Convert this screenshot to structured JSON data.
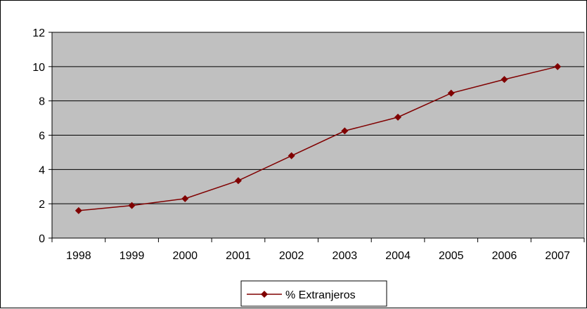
{
  "chart_data": {
    "type": "line",
    "title": "",
    "xlabel": "",
    "ylabel": "",
    "categories": [
      "1998",
      "1999",
      "2000",
      "2001",
      "2002",
      "2003",
      "2004",
      "2005",
      "2006",
      "2007"
    ],
    "series": [
      {
        "name": "% Extranjeros",
        "values": [
          1.6,
          1.9,
          2.3,
          3.35,
          4.8,
          6.25,
          7.05,
          8.45,
          9.25,
          10.0
        ],
        "color": "#800000",
        "marker": "diamond"
      }
    ],
    "ylim": [
      0,
      12
    ],
    "yticks": [
      "0",
      "2",
      "4",
      "6",
      "8",
      "10",
      "12"
    ],
    "grid": true,
    "plot_background": "#c0c0c0",
    "legend_position": "bottom-center"
  }
}
